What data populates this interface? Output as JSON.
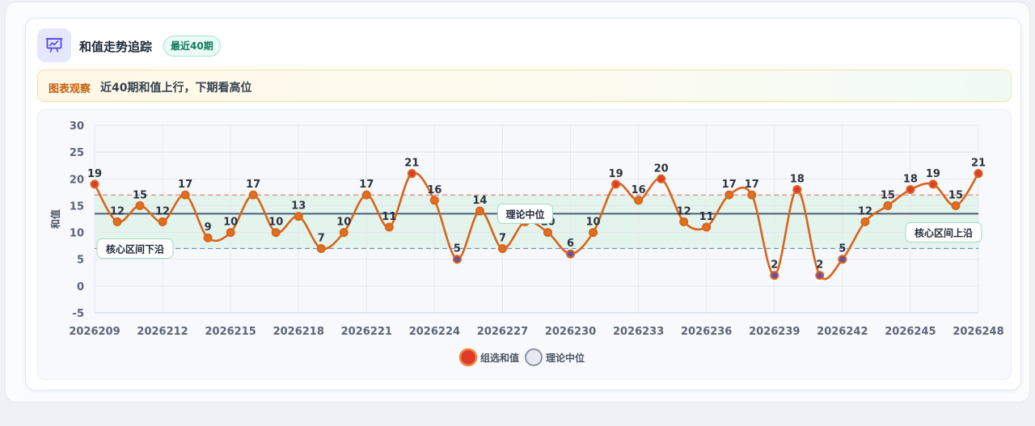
{
  "header": {
    "title": "和值走势追踪",
    "badge": "最近40期",
    "icon": "chart-presentation-icon"
  },
  "insight": {
    "tag": "图表观察",
    "text": "近40期和值上行，下期看高位"
  },
  "colors": {
    "line": "#d9641c",
    "point_high": "#e03a2b",
    "point_mid": "#e0701f",
    "point_low": "#6b4fa0",
    "median": "#4b5f7a",
    "band_fill": "#dcf3e7",
    "upper_line": "#e57373",
    "lower_line": "#6b8fc8"
  },
  "chart_data": {
    "type": "line",
    "x": [
      "2026209",
      "2026210",
      "2026211",
      "2026212",
      "2026213",
      "2026214",
      "2026215",
      "2026216",
      "2026217",
      "2026218",
      "2026219",
      "2026220",
      "2026221",
      "2026222",
      "2026223",
      "2026224",
      "2026225",
      "2026226",
      "2026227",
      "2026228",
      "2026229",
      "2026230",
      "2026231",
      "2026232",
      "2026233",
      "2026234",
      "2026235",
      "2026236",
      "2026237",
      "2026238",
      "2026239",
      "2026240",
      "2026241",
      "2026242",
      "2026243",
      "2026244",
      "2026245",
      "2026246",
      "2026247",
      "2026248"
    ],
    "x_tick_labels": [
      "2026209",
      "2026212",
      "2026215",
      "2026218",
      "2026221",
      "2026224",
      "2026227",
      "2026230",
      "2026233",
      "2026236",
      "2026239",
      "2026242",
      "2026245",
      "2026248"
    ],
    "series": [
      {
        "name": "组选和值",
        "values": [
          19,
          12,
          15,
          12,
          17,
          9,
          10,
          17,
          10,
          13,
          7,
          10,
          17,
          11,
          21,
          16,
          5,
          14,
          7,
          12,
          10,
          6,
          10,
          19,
          16,
          20,
          12,
          11,
          17,
          17,
          2,
          18,
          2,
          5,
          12,
          15,
          18,
          19,
          15,
          21
        ]
      },
      {
        "name": "理论中位",
        "values": [
          13.5,
          13.5,
          13.5,
          13.5,
          13.5,
          13.5,
          13.5,
          13.5,
          13.5,
          13.5,
          13.5,
          13.5,
          13.5,
          13.5,
          13.5,
          13.5,
          13.5,
          13.5,
          13.5,
          13.5,
          13.5,
          13.5,
          13.5,
          13.5,
          13.5,
          13.5,
          13.5,
          13.5,
          13.5,
          13.5,
          13.5,
          13.5,
          13.5,
          13.5,
          13.5,
          13.5,
          13.5,
          13.5,
          13.5,
          13.5
        ]
      }
    ],
    "ylabel": "和值",
    "xlabel": "",
    "ylim": [
      -5,
      30
    ],
    "y_ticks": [
      -5,
      0,
      5,
      10,
      15,
      20,
      25,
      30
    ],
    "core_band": {
      "lower": 7,
      "upper": 17
    },
    "annotations": {
      "lower": "核心区间下沿",
      "median": "理论中位",
      "upper": "核心区间上沿"
    },
    "legend_position": "bottom",
    "grid": true
  }
}
